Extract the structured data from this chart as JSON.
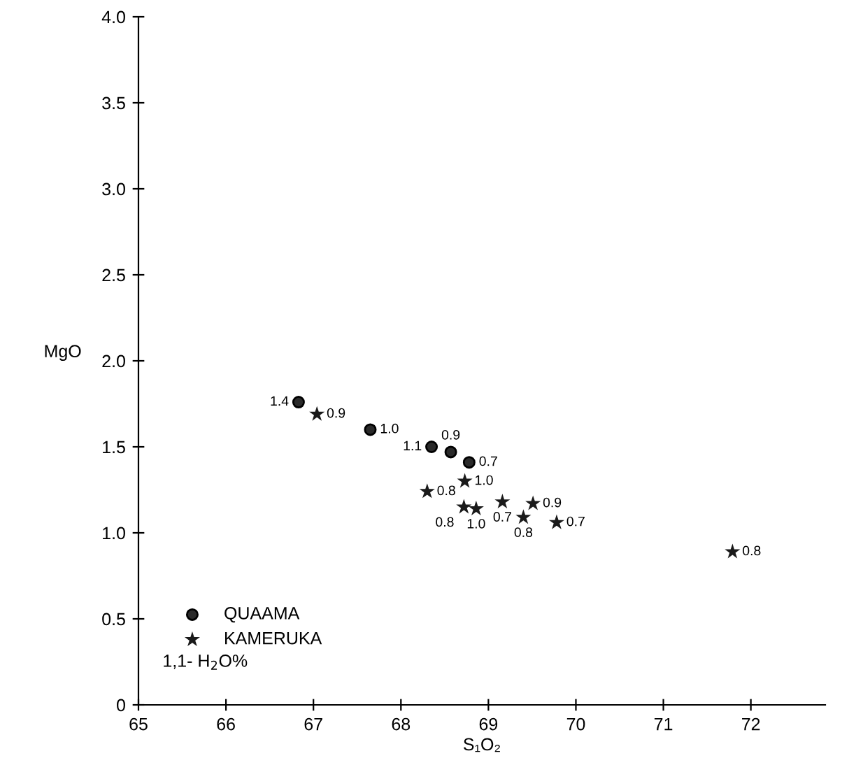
{
  "chart_data": {
    "type": "scatter",
    "xlabel": "S₁O₂",
    "ylabel": "MgO",
    "xlim": [
      65,
      72.85
    ],
    "ylim": [
      0,
      4.0
    ],
    "xticks": [
      65,
      66,
      67,
      68,
      69,
      70,
      71,
      72
    ],
    "yticks": [
      0,
      {
        "value": 0.5,
        "label": "0.5"
      },
      {
        "value": 1.0,
        "label": "1.0"
      },
      {
        "value": 1.5,
        "label": "1.5"
      },
      {
        "value": 2.0,
        "label": "2.0"
      },
      {
        "value": 2.5,
        "label": "2.5"
      },
      {
        "value": 3.0,
        "label": "3.0"
      },
      {
        "value": 3.5,
        "label": "3.5"
      },
      {
        "value": 4.0,
        "label": "4.0"
      }
    ],
    "grid": false,
    "legend": "bottom left",
    "series": [
      {
        "name": "QUAAMA",
        "color": "#2a2a2a",
        "marker": "circle",
        "x": [
          66.83,
          67.65,
          68.35,
          68.57,
          68.78
        ],
        "values": [
          1.76,
          1.6,
          1.5,
          1.47,
          1.41
        ]
      },
      {
        "name": "KAMERUKA",
        "color": "#1a1a1a",
        "marker": "star",
        "x": [
          67.04,
          68.3,
          68.73,
          68.72,
          68.86,
          69.16,
          69.51,
          69.4,
          69.78,
          71.79
        ],
        "values": [
          1.69,
          1.24,
          1.3,
          1.15,
          1.14,
          1.18,
          1.17,
          1.09,
          1.06,
          0.89
        ]
      }
    ],
    "annotations": [
      {
        "text": "1.4",
        "x": 66.83,
        "y": 1.76
      },
      {
        "text": "1.0",
        "x": 67.65,
        "y": 1.6
      },
      {
        "text": "1.1",
        "x": 68.35,
        "y": 1.5
      },
      {
        "text": "0.9",
        "x": 68.57,
        "y": 1.47
      },
      {
        "text": "0.7",
        "x": 68.78,
        "y": 1.41
      },
      {
        "text": "0.9",
        "x": 67.04,
        "y": 1.69
      },
      {
        "text": "0.8",
        "x": 68.3,
        "y": 1.24
      },
      {
        "text": "1.0",
        "x": 68.73,
        "y": 1.3
      },
      {
        "text": "0.8",
        "x": 68.72,
        "y": 1.15
      },
      {
        "text": "1.0",
        "x": 68.86,
        "y": 1.14
      },
      {
        "text": "0.7",
        "x": 69.16,
        "y": 1.18
      },
      {
        "text": "0.9",
        "x": 69.51,
        "y": 1.17
      },
      {
        "text": "0.8",
        "x": 69.4,
        "y": 1.09
      },
      {
        "text": "0.7",
        "x": 69.78,
        "y": 1.06
      },
      {
        "text": "0.8",
        "x": 71.79,
        "y": 0.89
      },
      "1,1- H$_{2}$O%"
    ]
  }
}
